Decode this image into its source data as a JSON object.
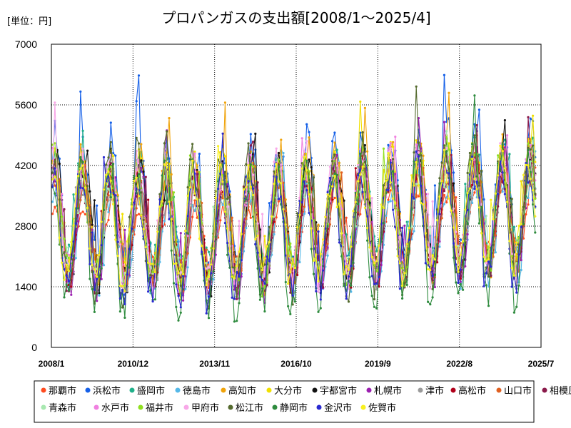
{
  "chart_data": {
    "type": "line",
    "title": "プロパンガスの支出額[2008/1～2025/4]",
    "unit_label": "[単位：円]",
    "x_range": [
      "2008/1",
      "2025/7"
    ],
    "x_ticks": [
      "2008/1",
      "2010/12",
      "2013/11",
      "2016/10",
      "2019/9",
      "2022/8",
      "2025/7"
    ],
    "ylim": [
      0,
      7000
    ],
    "y_ticks": [
      0,
      1400,
      2800,
      4200,
      5600,
      7000
    ],
    "grid": true,
    "legend_position": "bottom",
    "series": [
      {
        "name": "那覇市",
        "color": "#ff4b1f",
        "base": 2700,
        "amp": 700,
        "phase": 0.0
      },
      {
        "name": "浜松市",
        "color": "#1560e8",
        "base": 3300,
        "amp": 1500,
        "phase": 0.2
      },
      {
        "name": "盛岡市",
        "color": "#20b08a",
        "base": 3200,
        "amp": 1200,
        "phase": 0.4
      },
      {
        "name": "徳島市",
        "color": "#55b8e8",
        "base": 2600,
        "amp": 1100,
        "phase": 0.1
      },
      {
        "name": "高知市",
        "color": "#f0a30a",
        "base": 3200,
        "amp": 1400,
        "phase": 0.3
      },
      {
        "name": "大分市",
        "color": "#f0e000",
        "base": 3100,
        "amp": 1300,
        "phase": 0.5
      },
      {
        "name": "宇都宮市",
        "color": "#111111",
        "base": 3000,
        "amp": 1300,
        "phase": 0.15
      },
      {
        "name": "札幌市",
        "color": "#9b1fb0",
        "base": 2900,
        "amp": 1300,
        "phase": 0.25
      },
      {
        "name": "津市",
        "color": "#9a9a9a",
        "base": 2700,
        "amp": 1100,
        "phase": 0.35
      },
      {
        "name": "高松市",
        "color": "#b0001a",
        "base": 2800,
        "amp": 1200,
        "phase": 0.45
      },
      {
        "name": "山口市",
        "color": "#e06020",
        "base": 2900,
        "amp": 1100,
        "phase": 0.05
      },
      {
        "name": "相模原市",
        "color": "#8a1a4a",
        "base": 2800,
        "amp": 1200,
        "phase": 0.6
      },
      {
        "name": "青森市",
        "color": "#a8e8b0",
        "base": 2900,
        "amp": 1000,
        "phase": 0.7
      },
      {
        "name": "水戸市",
        "color": "#f080e0",
        "base": 3000,
        "amp": 1300,
        "phase": 0.8
      },
      {
        "name": "福井市",
        "color": "#90e020",
        "base": 3000,
        "amp": 1300,
        "phase": 0.9
      },
      {
        "name": "甲府市",
        "color": "#f8a8e8",
        "base": 3000,
        "amp": 1400,
        "phase": 1.0
      },
      {
        "name": "松江市",
        "color": "#556b2f",
        "base": 3000,
        "amp": 1500,
        "phase": 1.1
      },
      {
        "name": "静岡市",
        "color": "#2e8b3e",
        "base": 2600,
        "amp": 1500,
        "phase": 1.2
      },
      {
        "name": "金沢市",
        "color": "#2a2ad0",
        "base": 2700,
        "amp": 1300,
        "phase": 1.3
      },
      {
        "name": "佐賀市",
        "color": "#f8f020",
        "base": 2900,
        "amp": 1200,
        "phase": 1.4
      }
    ]
  }
}
